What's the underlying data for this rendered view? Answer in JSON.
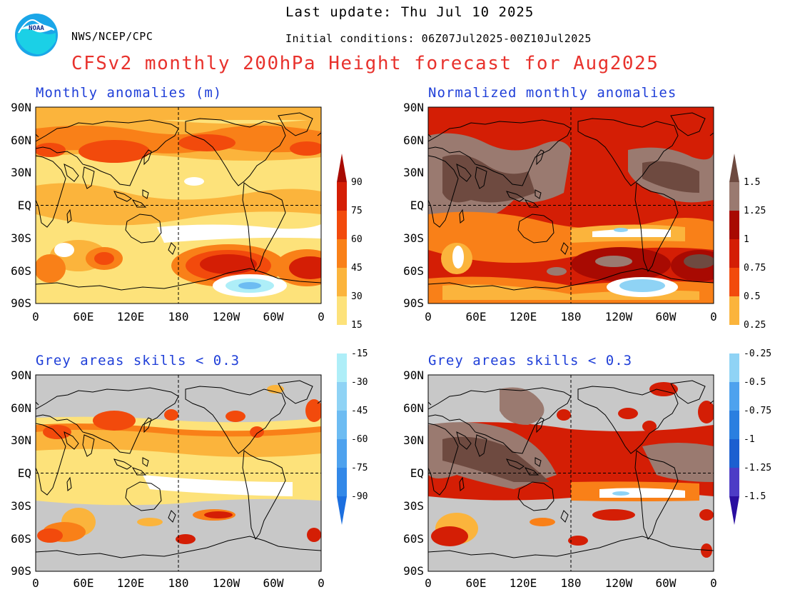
{
  "header": {
    "logo_text": "NOAA",
    "agency": "NWS/NCEP/CPC",
    "last_update": "Last update: Thu Jul 10 2025",
    "initial_conditions": "Initial conditions: 06Z07Jul2025-00Z10Jul2025",
    "title": "CFSv2 monthly 200hPa Height forecast for Aug2025"
  },
  "axes": {
    "lat_labels": [
      "90N",
      "60N",
      "30N",
      "EQ",
      "30S",
      "60S",
      "90S"
    ],
    "lon_labels": [
      "0",
      "60E",
      "120E",
      "180",
      "120W",
      "60W",
      "0"
    ]
  },
  "panels": [
    {
      "id": "top-left",
      "title": "Monthly anomalies (m)"
    },
    {
      "id": "top-right",
      "title": "Normalized monthly anomalies"
    },
    {
      "id": "bottom-left",
      "title": "Grey areas skills < 0.3"
    },
    {
      "id": "bottom-right",
      "title": "Grey areas skills < 0.3"
    }
  ],
  "colorbars": {
    "left": {
      "labels": [
        "90",
        "75",
        "60",
        "45",
        "30",
        "15",
        "-15",
        "-30",
        "-45",
        "-60",
        "-75",
        "-90"
      ]
    },
    "right": {
      "labels": [
        "1.5",
        "1.25",
        "1",
        "0.75",
        "0.5",
        "0.25",
        "-0.25",
        "-0.5",
        "-0.75",
        "-1",
        "-1.25",
        "-1.5"
      ]
    }
  },
  "colors": {
    "title": "#e8322d",
    "panel_title": "#1f3fd8",
    "skill_mask_grey": "#c8c8c8",
    "warm_scale": [
      "#fde27a",
      "#fbb43c",
      "#f98018",
      "#f24a0c",
      "#d41e05",
      "#a80a02"
    ],
    "cool_scale": [
      "#aeeef8",
      "#8fd3f5",
      "#6dbcf2",
      "#4ea2ee",
      "#3288e8",
      "#1c6fdf"
    ],
    "norm_high": [
      "#9a7a70",
      "#6e4a40"
    ],
    "norm_low": [
      "#4d3cc6",
      "#2a0fa0"
    ]
  }
}
